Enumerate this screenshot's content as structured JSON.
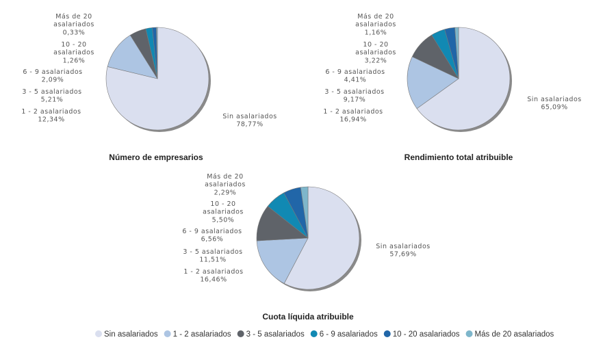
{
  "chart_data": [
    {
      "type": "pie",
      "title": "Número de empresarios",
      "categories": [
        "Sin asalariados",
        "1 - 2 asalariados",
        "3 - 5 asalariados",
        "6 - 9 asalariados",
        "10 - 20 asalariados",
        "Más de 20 asalariados"
      ],
      "values": [
        78.77,
        12.34,
        5.21,
        2.09,
        1.26,
        0.33
      ],
      "value_labels": [
        "78,77%",
        "12,34%",
        "5,21%",
        "2,09%",
        "1,26%",
        "0,33%"
      ]
    },
    {
      "type": "pie",
      "title": "Rendimiento total atribuible",
      "categories": [
        "Sin asalariados",
        "1 - 2 asalariados",
        "3 - 5 asalariados",
        "6 - 9 asalariados",
        "10 - 20 asalariados",
        "Más de 20 asalariados"
      ],
      "values": [
        65.09,
        16.94,
        9.17,
        4.41,
        3.22,
        1.16
      ],
      "value_labels": [
        "65,09%",
        "16,94%",
        "9,17%",
        "4,41%",
        "3,22%",
        "1,16%"
      ]
    },
    {
      "type": "pie",
      "title": "Cuota líquida atribuible",
      "categories": [
        "Sin asalariados",
        "1 - 2 asalariados",
        "3 - 5 asalariados",
        "6 - 9 asalariados",
        "10 - 20 asalariados",
        "Más de 20 asalariados"
      ],
      "values": [
        57.69,
        16.46,
        11.51,
        6.56,
        5.5,
        2.29
      ],
      "value_labels": [
        "57,69%",
        "16,46%",
        "11,51%",
        "6,56%",
        "5,50%",
        "2,29%"
      ]
    }
  ],
  "legend": {
    "position": "bottom",
    "items": [
      "Sin asalariados",
      "1 - 2 asalariados",
      "3 - 5 asalariados",
      "6 - 9 asalariados",
      "10 - 20 asalariados",
      "Más de 20 asalariados"
    ]
  },
  "colors": [
    "#dadfef",
    "#adc5e3",
    "#5f6369",
    "#1189b3",
    "#2166a8",
    "#7eb6cb"
  ]
}
